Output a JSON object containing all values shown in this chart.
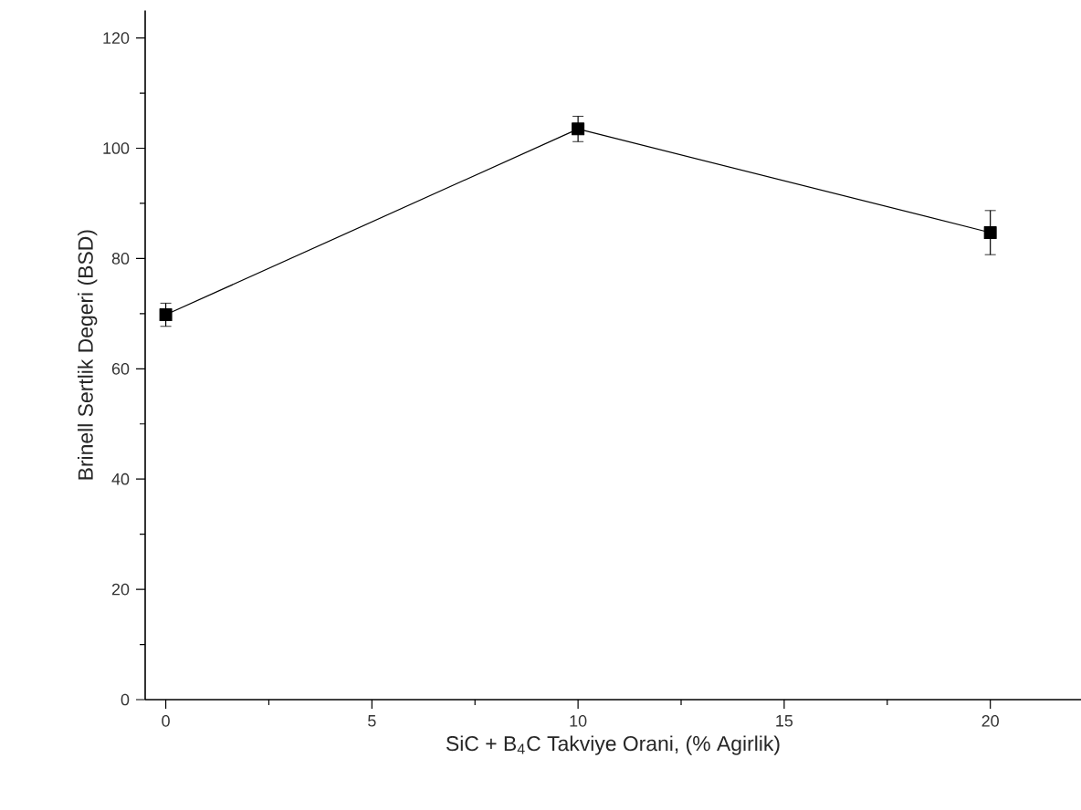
{
  "chart_data": {
    "type": "line",
    "xlabel": "SiC + B$_{4}$C Takviye Orani, (% Agirlik)",
    "ylabel": "Brinell Sertlik Degeri (BSD)",
    "x": [
      0,
      10,
      20
    ],
    "series": [
      {
        "color": "#000000",
        "values": [
          69.8,
          103.5,
          84.7
        ],
        "errors": [
          2.1,
          2.3,
          4
        ]
      }
    ],
    "xlim": [
      -0.5,
      22.2
    ],
    "ylim": [
      0,
      125
    ],
    "xticks": [
      0,
      5,
      10,
      15,
      20
    ],
    "yticks": [
      0,
      20,
      40,
      60,
      80,
      100,
      120
    ],
    "marker": "square",
    "line_style": "solid"
  }
}
